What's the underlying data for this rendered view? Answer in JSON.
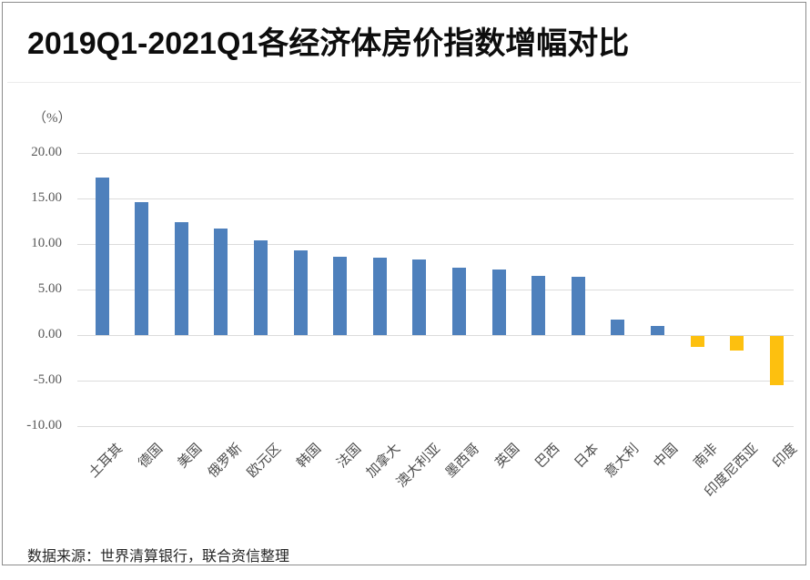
{
  "title": "2019Q1-2021Q1各经济体房价指数增幅对比",
  "unit_label": "（%）",
  "source_note": "数据来源：世界清算银行，联合资信整理",
  "colors": {
    "positive_bar": "#4E80BC",
    "negative_bar": "#FDC00F",
    "gridline": "#dcdcdc",
    "axis_text": "#595959",
    "title_text": "#0d0d0d",
    "frame_border": "#8c8c8c"
  },
  "chart_data": {
    "type": "bar",
    "title": "2019Q1-2021Q1各经济体房价指数增幅对比",
    "ylabel": "（%）",
    "xlabel": "",
    "ylim": [
      -10,
      20
    ],
    "ytick_step": 5,
    "ytick_labels": [
      "20.00",
      "15.00",
      "10.00",
      "5.00",
      "0.00",
      "-5.00",
      "-10.00"
    ],
    "ytick_values": [
      20,
      15,
      10,
      5,
      0,
      -5,
      -10
    ],
    "grid": true,
    "legend": "none",
    "categories": [
      "土耳其",
      "德国",
      "美国",
      "俄罗斯",
      "欧元区",
      "韩国",
      "法国",
      "加拿大",
      "澳大利亚",
      "墨西哥",
      "英国",
      "巴西",
      "日本",
      "意大利",
      "中国",
      "南非",
      "印度尼西亚",
      "印度"
    ],
    "values": [
      17.3,
      14.6,
      12.4,
      11.7,
      10.4,
      9.3,
      8.6,
      8.5,
      8.3,
      7.4,
      7.2,
      6.5,
      6.4,
      1.7,
      1.0,
      -1.2,
      -1.6,
      -5.4
    ]
  }
}
